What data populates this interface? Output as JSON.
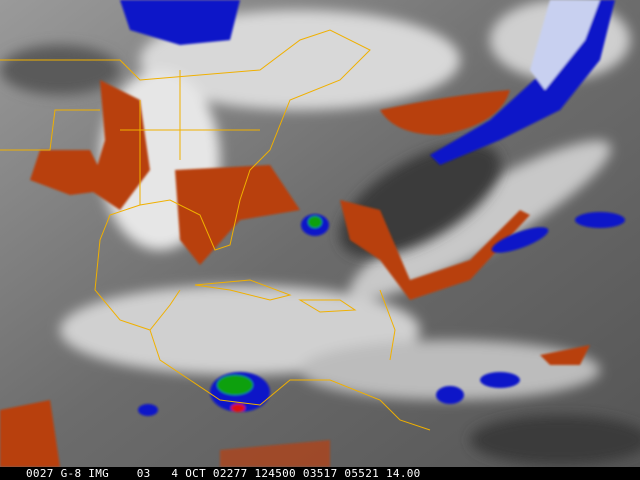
{
  "image": {
    "kind": "satellite-water-vapor",
    "colors": {
      "dry": "#b8400e",
      "cold_cloud": "#0a14c8",
      "very_cold": "#10a010",
      "coldest": "#e01010",
      "coastline": "#f0b000"
    }
  },
  "caption": {
    "text": "0027 G-8 IMG    03   4 OCT 02277 124500 03517 05521 14.00"
  }
}
